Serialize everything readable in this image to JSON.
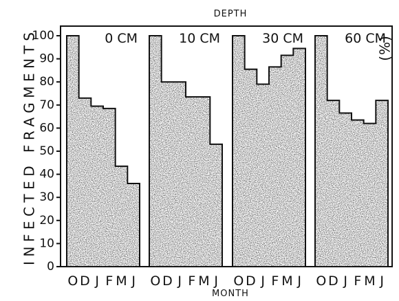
{
  "chart_data": {
    "type": "bar",
    "title": "DEPTH",
    "xlabel": "MONTH",
    "ylabel": "INFECTED FRAGMENTS",
    "ylabel_unit": "(%)",
    "ylim": [
      0,
      100
    ],
    "yticks": [
      "0",
      "10",
      "20",
      "30",
      "40",
      "50",
      "60",
      "70",
      "80",
      "90",
      "100"
    ],
    "month_labels": [
      "O",
      "D",
      "J",
      "F",
      "M",
      "J"
    ],
    "fill_color": "#3a3a3a",
    "panels": [
      {
        "name": "0 CM",
        "values": [
          100,
          73,
          69.5,
          68.5,
          43.5,
          36
        ]
      },
      {
        "name": "10 CM",
        "values": [
          100,
          80,
          80,
          73.5,
          73.5,
          53
        ]
      },
      {
        "name": "30 CM",
        "values": [
          100,
          85.5,
          79,
          86.5,
          91.5,
          94.5
        ]
      },
      {
        "name": "60 CM",
        "values": [
          100,
          72,
          66.5,
          63.5,
          62,
          72
        ]
      }
    ]
  }
}
